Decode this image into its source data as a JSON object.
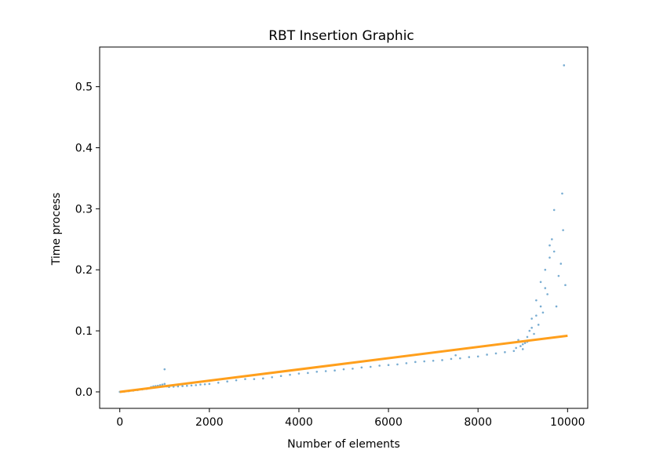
{
  "chart_data": {
    "type": "scatter",
    "title": "RBT Insertion Graphic",
    "xlabel": "Number of elements",
    "ylabel": "Time process",
    "xlim": [
      -450,
      10450
    ],
    "ylim": [
      -0.027,
      0.565
    ],
    "xticks": [
      0,
      2000,
      4000,
      6000,
      8000,
      10000
    ],
    "xtick_labels": [
      "0",
      "2000",
      "4000",
      "6000",
      "8000",
      "10000"
    ],
    "yticks": [
      0.0,
      0.1,
      0.2,
      0.3,
      0.4,
      0.5
    ],
    "ytick_labels": [
      "0.0",
      "0.1",
      "0.2",
      "0.3",
      "0.4",
      "0.5"
    ],
    "grid": false,
    "series": [
      {
        "kind": "scatter",
        "color": "#1f77b4",
        "x": [
          0,
          100,
          200,
          300,
          400,
          500,
          600,
          700,
          750,
          800,
          850,
          900,
          950,
          1000,
          1050,
          1100,
          1200,
          1300,
          1400,
          1500,
          1600,
          1700,
          1800,
          1900,
          2000,
          2200,
          2400,
          2600,
          2800,
          3000,
          3200,
          3400,
          3600,
          3800,
          4000,
          4200,
          4400,
          4600,
          4800,
          5000,
          5200,
          5400,
          5600,
          5800,
          6000,
          6200,
          6400,
          6600,
          6800,
          7000,
          7200,
          7400,
          7500,
          7600,
          7800,
          8000,
          8200,
          8400,
          8600,
          8800,
          8850,
          8900,
          8950,
          9000,
          9050,
          9100,
          9150,
          9200,
          9250,
          9300,
          9350,
          9400,
          9450,
          9500,
          9550,
          9600,
          9650,
          9700,
          9750,
          9800,
          9850,
          9900,
          9950,
          1000,
          9880,
          9920,
          9700,
          9600,
          9500,
          9400,
          9300,
          9200,
          9100,
          9000
        ],
        "y": [
          0.0,
          0.0005,
          0.0012,
          0.002,
          0.003,
          0.004,
          0.005,
          0.008,
          0.009,
          0.0095,
          0.01,
          0.011,
          0.012,
          0.013,
          0.009,
          0.008,
          0.0085,
          0.009,
          0.0095,
          0.01,
          0.0105,
          0.011,
          0.012,
          0.0125,
          0.013,
          0.015,
          0.017,
          0.019,
          0.021,
          0.021,
          0.022,
          0.024,
          0.026,
          0.028,
          0.03,
          0.031,
          0.033,
          0.034,
          0.035,
          0.037,
          0.038,
          0.04,
          0.041,
          0.043,
          0.044,
          0.045,
          0.047,
          0.049,
          0.05,
          0.051,
          0.052,
          0.054,
          0.06,
          0.055,
          0.057,
          0.058,
          0.061,
          0.063,
          0.065,
          0.067,
          0.072,
          0.085,
          0.075,
          0.07,
          0.08,
          0.09,
          0.1,
          0.12,
          0.095,
          0.15,
          0.11,
          0.18,
          0.13,
          0.2,
          0.16,
          0.22,
          0.25,
          0.23,
          0.14,
          0.19,
          0.21,
          0.265,
          0.175,
          0.037,
          0.325,
          0.535,
          0.298,
          0.24,
          0.17,
          0.14,
          0.125,
          0.105,
          0.082,
          0.078
        ]
      },
      {
        "kind": "line",
        "color": "#ff9f1c",
        "x": [
          0,
          10000
        ],
        "y": [
          0.0,
          0.092
        ]
      }
    ]
  }
}
